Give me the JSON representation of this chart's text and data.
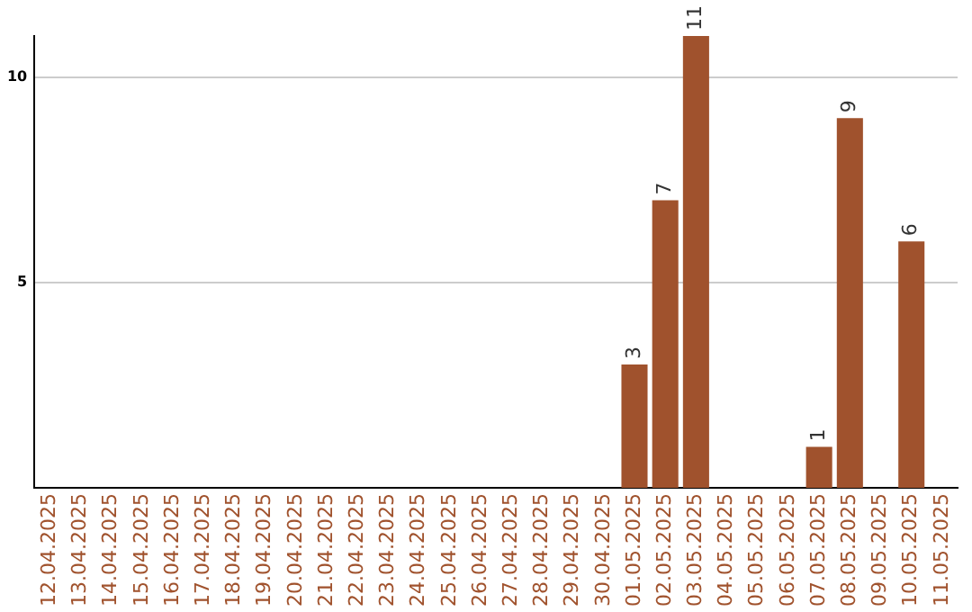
{
  "chart_data": {
    "type": "bar",
    "categories": [
      "12.04.2025",
      "13.04.2025",
      "14.04.2025",
      "15.04.2025",
      "16.04.2025",
      "17.04.2025",
      "18.04.2025",
      "19.04.2025",
      "20.04.2025",
      "21.04.2025",
      "22.04.2025",
      "23.04.2025",
      "24.04.2025",
      "25.04.2025",
      "26.04.2025",
      "27.04.2025",
      "28.04.2025",
      "29.04.2025",
      "30.04.2025",
      "01.05.2025",
      "02.05.2025",
      "03.05.2025",
      "04.05.2025",
      "05.05.2025",
      "06.05.2025",
      "07.05.2025",
      "08.05.2025",
      "09.05.2025",
      "10.05.2025",
      "11.05.2025"
    ],
    "values": [
      0,
      0,
      0,
      0,
      0,
      0,
      0,
      0,
      0,
      0,
      0,
      0,
      0,
      0,
      0,
      0,
      0,
      0,
      0,
      3,
      7,
      11,
      0,
      0,
      0,
      1,
      9,
      0,
      6,
      0
    ],
    "value_labels": [
      null,
      null,
      null,
      null,
      null,
      null,
      null,
      null,
      null,
      null,
      null,
      null,
      null,
      null,
      null,
      null,
      null,
      null,
      null,
      "3",
      "7",
      "11",
      null,
      null,
      null,
      "1",
      "9",
      null,
      "6",
      null
    ],
    "color": "#a0522d",
    "ylim": [
      0,
      11
    ],
    "yticks": [
      5,
      10
    ],
    "grid": "y",
    "legend": false
  }
}
